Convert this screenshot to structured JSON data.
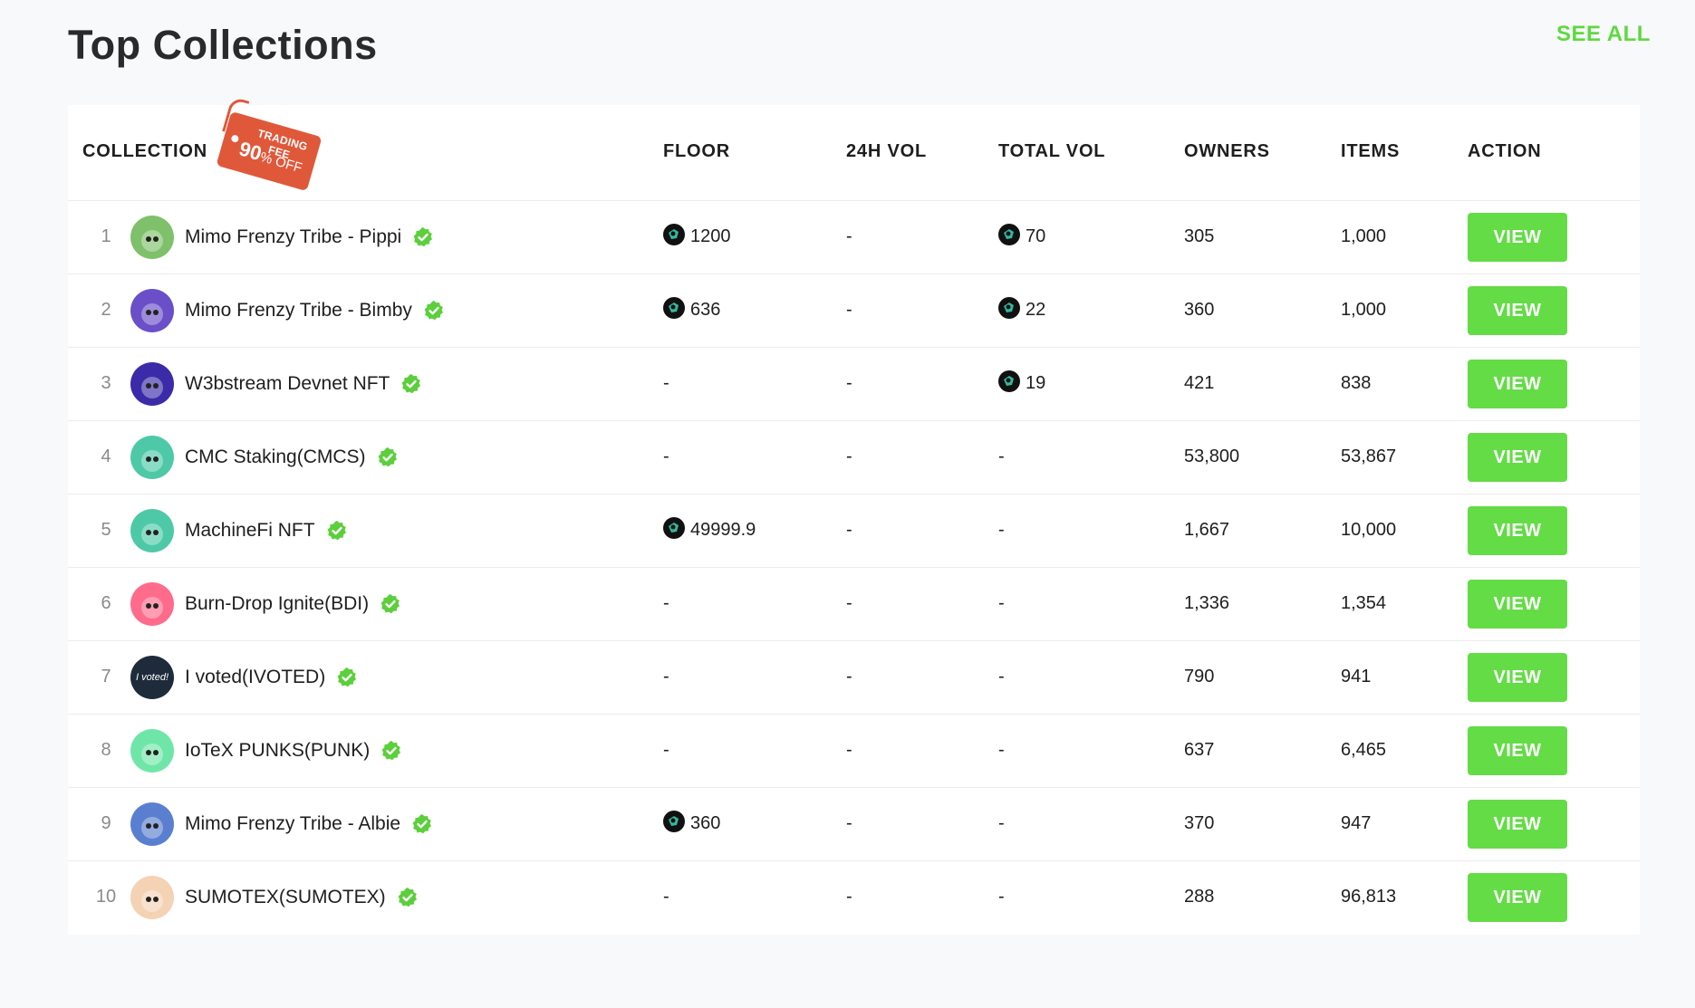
{
  "page": {
    "title": "Top Collections",
    "see_all_label": "SEE ALL"
  },
  "colors": {
    "accent_green": "#63dc46",
    "see_all_green": "#5ed93f",
    "tag_orange": "#e0583a",
    "verified_green": "#5ccf3c"
  },
  "promo_tag": {
    "line1": "TRADING FEE",
    "percent": "90",
    "suffix": "% OFF"
  },
  "table": {
    "headers": {
      "collection": "COLLECTION",
      "floor": "FLOOR",
      "vol24": "24H VOL",
      "total_vol": "TOTAL VOL",
      "owners": "OWNERS",
      "items": "ITEMS",
      "action": "ACTION"
    },
    "view_label": "VIEW",
    "rows": [
      {
        "rank": "1",
        "name": "Mimo Frenzy Tribe - Pippi",
        "floor": "1200",
        "floor_coin": true,
        "vol24": "-",
        "total_vol": "70",
        "total_coin": true,
        "owners": "305",
        "items": "1,000",
        "avatar": "mimo-pippi-avatar",
        "avatar_color": "#7fc06b"
      },
      {
        "rank": "2",
        "name": "Mimo Frenzy Tribe - Bimby",
        "floor": "636",
        "floor_coin": true,
        "vol24": "-",
        "total_vol": "22",
        "total_coin": true,
        "owners": "360",
        "items": "1,000",
        "avatar": "mimo-bimby-avatar",
        "avatar_color": "#6a4fc8"
      },
      {
        "rank": "3",
        "name": "W3bstream Devnet NFT",
        "floor": "-",
        "floor_coin": false,
        "vol24": "-",
        "total_vol": "19",
        "total_coin": true,
        "owners": "421",
        "items": "838",
        "avatar": "w3bstream-avatar",
        "avatar_color": "#3b2ba8"
      },
      {
        "rank": "4",
        "name": "CMC Staking(CMCS)",
        "floor": "-",
        "floor_coin": false,
        "vol24": "-",
        "total_vol": "-",
        "total_coin": false,
        "owners": "53,800",
        "items": "53,867",
        "avatar": "cmc-avatar",
        "avatar_color": "#4ec9a8"
      },
      {
        "rank": "5",
        "name": "MachineFi NFT",
        "floor": "49999.9",
        "floor_coin": true,
        "vol24": "-",
        "total_vol": "-",
        "total_coin": false,
        "owners": "1,667",
        "items": "10,000",
        "avatar": "machinefi-avatar",
        "avatar_color": "#4ec9a8"
      },
      {
        "rank": "6",
        "name": "Burn-Drop Ignite(BDI)",
        "floor": "-",
        "floor_coin": false,
        "vol24": "-",
        "total_vol": "-",
        "total_coin": false,
        "owners": "1,336",
        "items": "1,354",
        "avatar": "bdi-avatar",
        "avatar_color": "#ff6b8b"
      },
      {
        "rank": "7",
        "name": "I voted(IVOTED)",
        "floor": "-",
        "floor_coin": false,
        "vol24": "-",
        "total_vol": "-",
        "total_coin": false,
        "owners": "790",
        "items": "941",
        "avatar": "ivoted-avatar",
        "avatar_color": "#1d2b3a",
        "avatar_text": "I voted!"
      },
      {
        "rank": "8",
        "name": "IoTeX PUNKS(PUNK)",
        "floor": "-",
        "floor_coin": false,
        "vol24": "-",
        "total_vol": "-",
        "total_coin": false,
        "owners": "637",
        "items": "6,465",
        "avatar": "punks-avatar",
        "avatar_color": "#6fe6a8"
      },
      {
        "rank": "9",
        "name": "Mimo Frenzy Tribe - Albie",
        "floor": "360",
        "floor_coin": true,
        "vol24": "-",
        "total_vol": "-",
        "total_coin": false,
        "owners": "370",
        "items": "947",
        "avatar": "mimo-albie-avatar",
        "avatar_color": "#5b7fd0"
      },
      {
        "rank": "10",
        "name": "SUMOTEX(SUMOTEX)",
        "floor": "-",
        "floor_coin": false,
        "vol24": "-",
        "total_vol": "-",
        "total_coin": false,
        "owners": "288",
        "items": "96,813",
        "avatar": "sumotex-avatar",
        "avatar_color": "#f4d2b4"
      }
    ]
  }
}
